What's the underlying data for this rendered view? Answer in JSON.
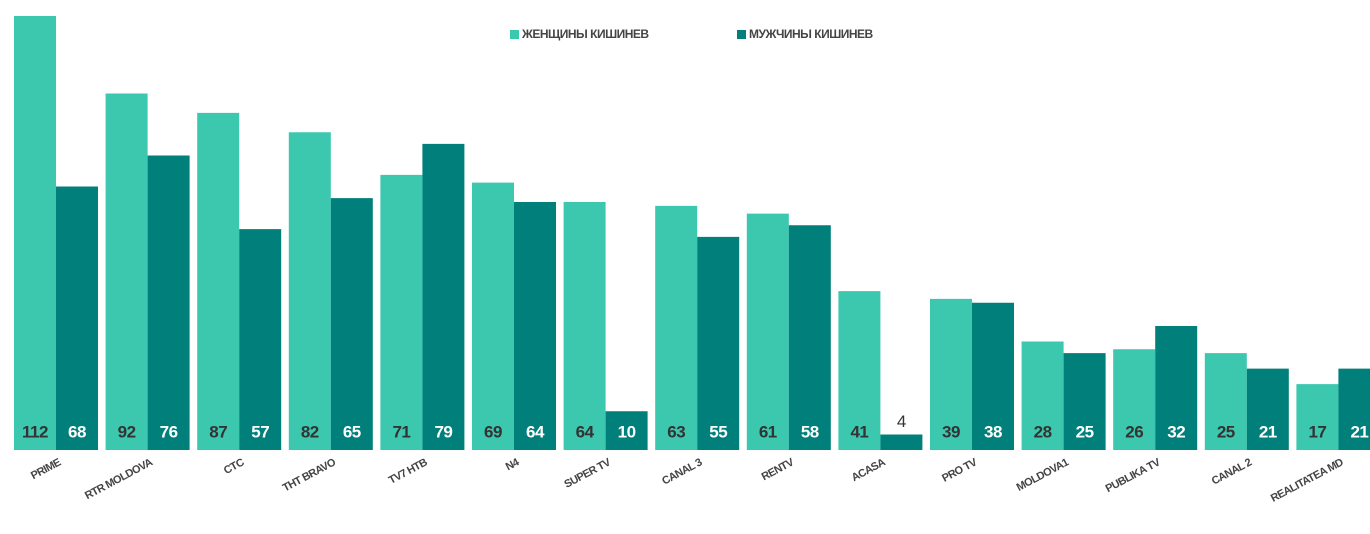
{
  "chart_data": {
    "type": "bar",
    "categories": [
      "PRIME",
      "RTR MOLDOVA",
      "CTC",
      "THT BRAVO",
      "TV7 HTB",
      "N4",
      "SUPER TV",
      "CANAL 3",
      "RENTV",
      "ACASA",
      "PRO TV",
      "MOLDOVA1",
      "PUBLIKA TV",
      "CANAL 2",
      "REALITATEA MD"
    ],
    "series": [
      {
        "name": "ЖЕНЩИНЫ КИШИНЕВ",
        "color": "#3cc7af",
        "values": [
          112,
          92,
          87,
          82,
          71,
          69,
          64,
          63,
          61,
          41,
          39,
          28,
          26,
          25,
          17
        ]
      },
      {
        "name": "МУЖЧИНЫ КИШИНЕВ",
        "color": "#007f7b",
        "values": [
          68,
          76,
          57,
          65,
          79,
          64,
          10,
          55,
          58,
          4,
          38,
          25,
          32,
          21,
          21
        ]
      }
    ],
    "legend": "top"
  }
}
